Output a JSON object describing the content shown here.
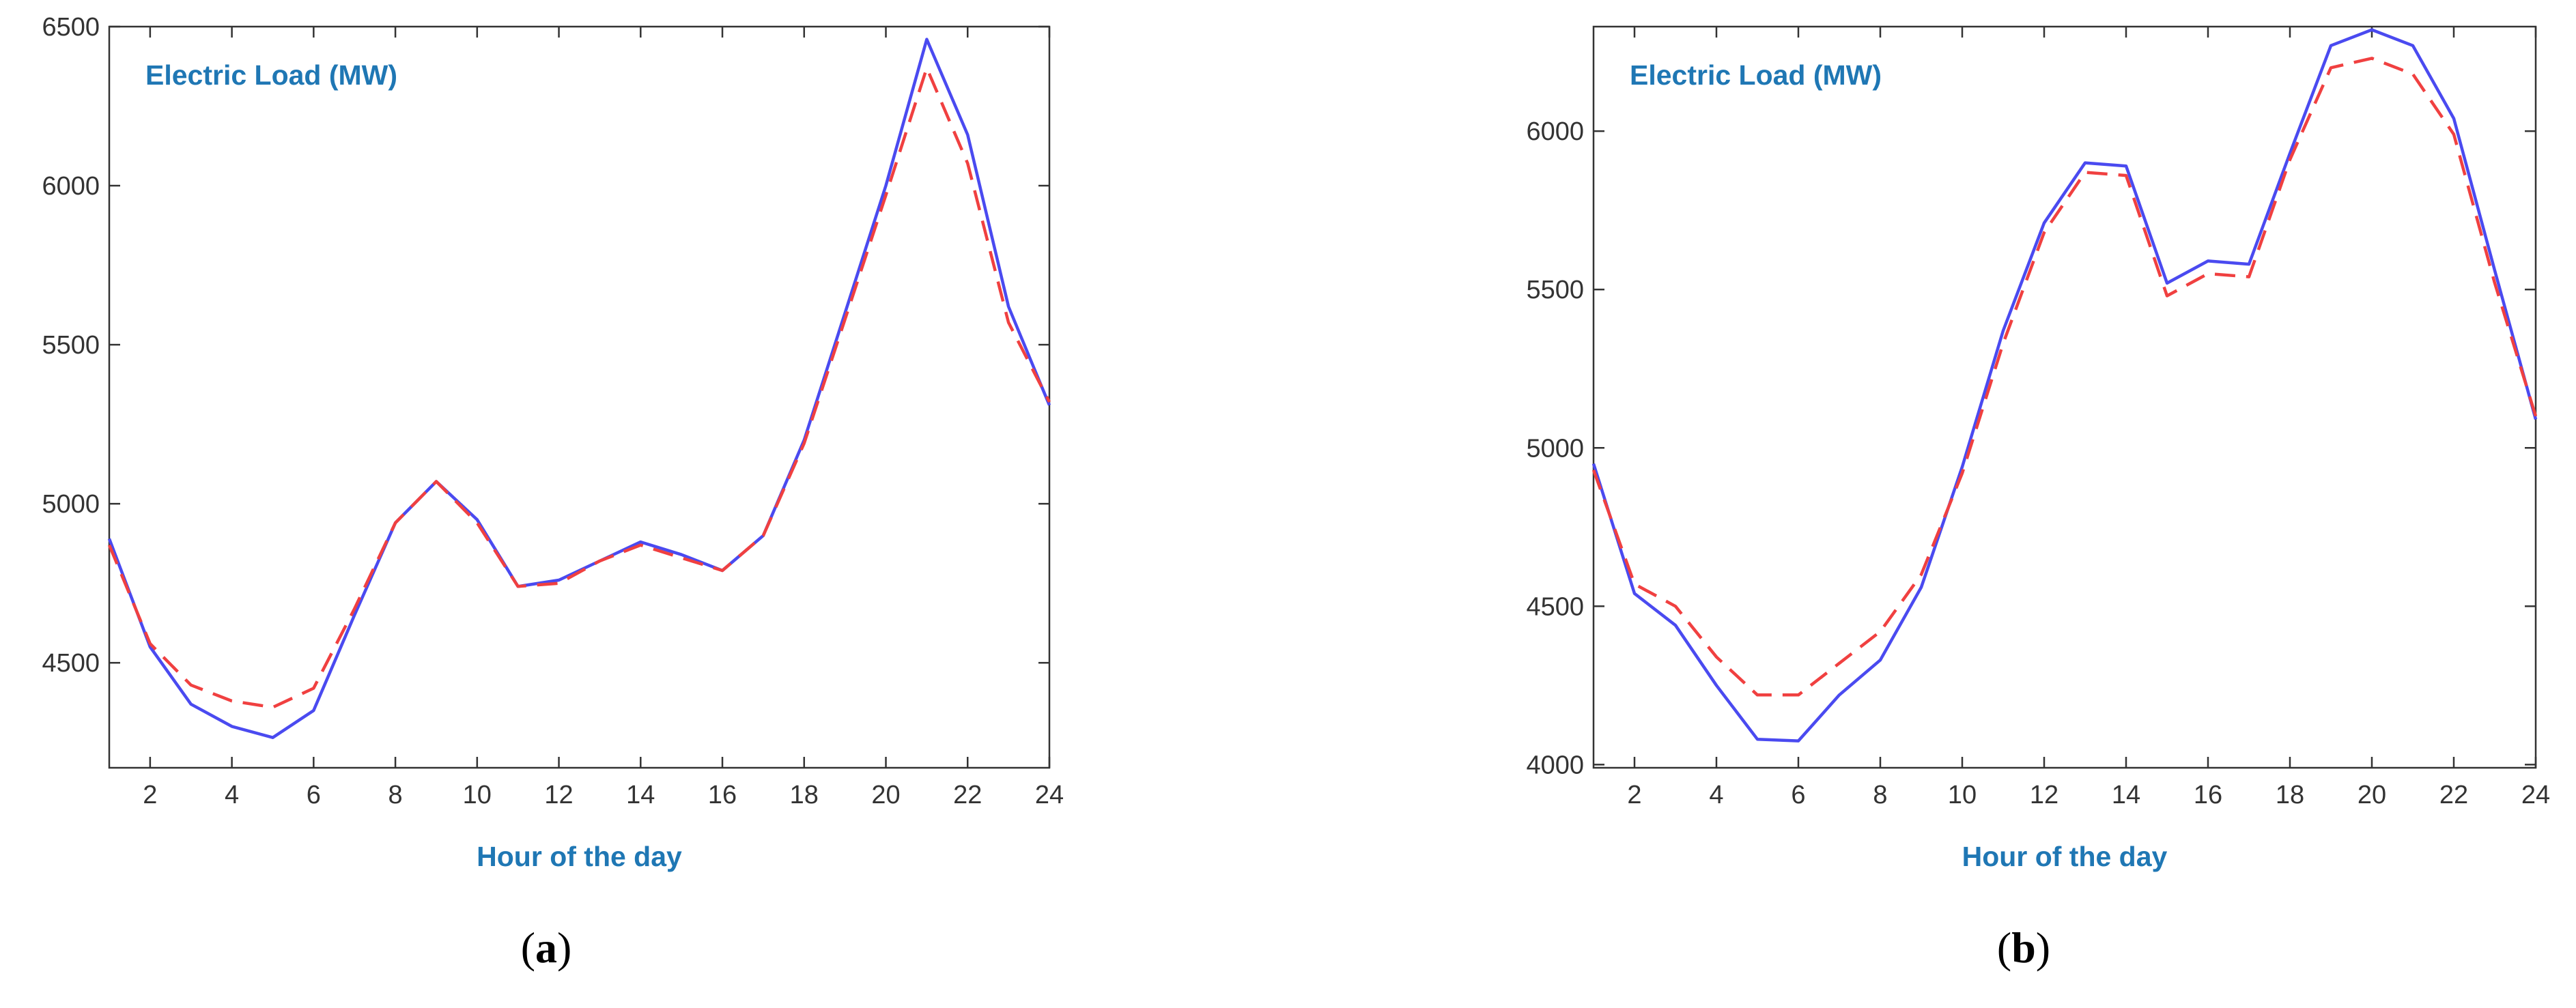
{
  "charts": [
    {
      "caption_open": "(",
      "caption_letter": "a",
      "caption_close": ")",
      "chart_data": {
        "type": "line",
        "title": "",
        "annotation": "Electric Load (MW)",
        "xlabel": "Hour of the day",
        "ylabel": "",
        "x": [
          1,
          2,
          3,
          4,
          5,
          6,
          7,
          8,
          9,
          10,
          11,
          12,
          13,
          14,
          15,
          16,
          17,
          18,
          19,
          20,
          21,
          22,
          23,
          24
        ],
        "xlim": [
          1,
          24
        ],
        "ylim": [
          4170,
          6500
        ],
        "xticks": [
          2,
          4,
          6,
          8,
          10,
          12,
          14,
          16,
          18,
          20,
          22,
          24
        ],
        "yticks": [
          4500,
          5000,
          5500,
          6000,
          6500
        ],
        "grid": false,
        "series": [
          {
            "color": "#4a4af0",
            "dash": "solid",
            "values": [
              4890,
              4550,
              4370,
              4300,
              4265,
              4350,
              4650,
              4940,
              5070,
              4950,
              4740,
              4760,
              4820,
              4880,
              4840,
              4790,
              4900,
              5200,
              5600,
              6000,
              6460,
              6160,
              5620,
              5310
            ]
          },
          {
            "color": "#f04040",
            "dash": "dashed",
            "values": [
              4870,
              4560,
              4430,
              4380,
              4360,
              4420,
              4670,
              4940,
              5070,
              4940,
              4740,
              4750,
              4820,
              4870,
              4830,
              4790,
              4900,
              5190,
              5580,
              5970,
              6370,
              6070,
              5570,
              5320
            ]
          }
        ]
      }
    },
    {
      "caption_open": "(",
      "caption_letter": "b",
      "caption_close": ")",
      "chart_data": {
        "type": "line",
        "title": "",
        "annotation": "Electric Load (MW)",
        "xlabel": "Hour of the day",
        "ylabel": "",
        "x": [
          1,
          2,
          3,
          4,
          5,
          6,
          7,
          8,
          9,
          10,
          11,
          12,
          13,
          14,
          15,
          16,
          17,
          18,
          19,
          20,
          21,
          22,
          23,
          24
        ],
        "xlim": [
          1,
          24
        ],
        "ylim": [
          3990,
          6330
        ],
        "xticks": [
          2,
          4,
          6,
          8,
          10,
          12,
          14,
          16,
          18,
          20,
          22,
          24
        ],
        "yticks": [
          4000,
          4500,
          5000,
          5500,
          6000
        ],
        "grid": false,
        "series": [
          {
            "color": "#4a4af0",
            "dash": "solid",
            "values": [
              4950,
              4540,
              4440,
              4250,
              4080,
              4075,
              4220,
              4330,
              4560,
              4940,
              5370,
              5710,
              5900,
              5890,
              5520,
              5590,
              5580,
              5930,
              6270,
              6320,
              6270,
              6040,
              5560,
              5090
            ]
          },
          {
            "color": "#f04040",
            "dash": "dashed",
            "values": [
              4930,
              4570,
              4500,
              4340,
              4220,
              4220,
              4320,
              4420,
              4600,
              4920,
              5330,
              5680,
              5870,
              5860,
              5480,
              5550,
              5540,
              5910,
              6200,
              6230,
              6180,
              5990,
              5520,
              5100
            ]
          }
        ]
      }
    }
  ]
}
